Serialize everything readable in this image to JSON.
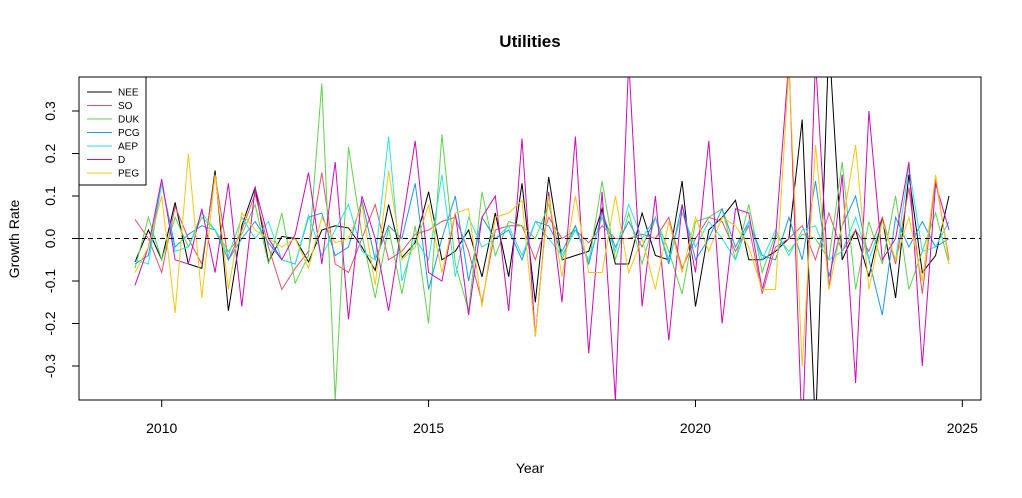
{
  "chart_data": {
    "type": "line",
    "title": "Utilities",
    "xlabel": "Year",
    "ylabel": "Growth Rate",
    "xlim": [
      2008.45,
      2025.35
    ],
    "ylim": [
      -0.38,
      0.38
    ],
    "xticks": [
      2010,
      2015,
      2020,
      2025
    ],
    "yticks": [
      -0.3,
      -0.2,
      -0.1,
      0.0,
      0.1,
      0.2,
      0.3
    ],
    "xtick_labels": [
      "2010",
      "2015",
      "2020",
      "2025"
    ],
    "ytick_labels": [
      "-0.3",
      "-0.2",
      "-0.1",
      "0.0",
      "0.1",
      "0.2",
      "0.3"
    ],
    "reference_line": {
      "y": 0,
      "style": "dashed"
    },
    "legend_position": "top-left",
    "x_start": 2009.5,
    "x_step": 0.25,
    "series": [
      {
        "name": "NEE",
        "color": "#000000",
        "values": [
          -0.055,
          0.02,
          -0.05,
          0.085,
          -0.06,
          -0.07,
          0.16,
          -0.17,
          0.03,
          0.12,
          -0.055,
          0.005,
          0.0,
          -0.055,
          0.02,
          0.03,
          0.025,
          -0.02,
          -0.075,
          0.08,
          -0.045,
          -0.01,
          0.11,
          -0.05,
          -0.03,
          0.02,
          -0.09,
          0.06,
          -0.09,
          0.13,
          -0.15,
          0.145,
          -0.05,
          -0.04,
          -0.03,
          0.07,
          -0.06,
          -0.06,
          0.06,
          -0.04,
          -0.05,
          0.135,
          -0.16,
          0.02,
          0.05,
          0.09,
          -0.05,
          -0.05,
          -0.03,
          0.0,
          0.28,
          -0.45,
          0.47,
          -0.05,
          0.02,
          -0.09,
          0.05,
          -0.14,
          0.15,
          -0.08,
          -0.04,
          0.1
        ]
      },
      {
        "name": "SO",
        "color": "#DF536B",
        "values": [
          0.045,
          0.0,
          -0.08,
          0.075,
          0.0,
          -0.06,
          0.15,
          -0.05,
          0.02,
          0.105,
          -0.02,
          -0.12,
          -0.07,
          -0.03,
          0.155,
          -0.06,
          -0.08,
          0.0,
          0.08,
          -0.05,
          -0.03,
          0.01,
          0.02,
          0.04,
          0.05,
          -0.03,
          -0.15,
          0.02,
          0.03,
          0.03,
          -0.05,
          0.05,
          0.0,
          0.02,
          -0.01,
          0.03,
          0.0,
          0.0,
          0.01,
          0.0,
          0.05,
          -0.07,
          0.0,
          0.05,
          0.04,
          -0.03,
          0.03,
          -0.13,
          -0.02,
          0.0,
          0.03,
          -0.05,
          0.06,
          -0.03,
          0.02,
          -0.03,
          0.05,
          -0.06,
          0.12,
          -0.13,
          0.14,
          -0.05
        ]
      },
      {
        "name": "DUK",
        "color": "#61D04F",
        "values": [
          -0.07,
          0.05,
          -0.05,
          0.05,
          -0.02,
          0.05,
          0.02,
          -0.03,
          0.01,
          0.08,
          -0.06,
          0.06,
          -0.105,
          -0.04,
          0.365,
          -0.38,
          0.215,
          0.01,
          -0.14,
          0.025,
          -0.13,
          0.03,
          -0.2,
          0.245,
          -0.06,
          -0.17,
          0.11,
          -0.04,
          0.04,
          0.03,
          0.0,
          0.08,
          -0.05,
          0.03,
          -0.06,
          0.135,
          -0.05,
          0.06,
          -0.06,
          0.05,
          -0.03,
          -0.13,
          0.04,
          0.05,
          0.07,
          -0.05,
          0.08,
          -0.08,
          0.01,
          -0.03,
          0.01,
          0.0,
          -0.05,
          0.18,
          -0.12,
          0.04,
          -0.06,
          0.1,
          -0.12,
          -0.03,
          0.06,
          -0.06
        ]
      },
      {
        "name": "PCG",
        "color": "#2297E6",
        "values": [
          -0.06,
          -0.04,
          0.13,
          -0.02,
          0.01,
          0.03,
          0.02,
          -0.05,
          0.0,
          0.04,
          -0.01,
          -0.05,
          -0.06,
          0.05,
          0.06,
          -0.04,
          -0.02,
          0.09,
          -0.05,
          0.03,
          0.0,
          0.13,
          -0.12,
          0.0,
          0.1,
          -0.1,
          0.05,
          0.0,
          0.02,
          -0.05,
          0.04,
          0.03,
          -0.03,
          0.03,
          -0.06,
          0.06,
          -0.02,
          0.04,
          -0.02,
          0.05,
          -0.06,
          0.08,
          -0.05,
          0.0,
          0.07,
          -0.02,
          0.04,
          -0.04,
          -0.05,
          0.05,
          -0.05,
          0.135,
          -0.09,
          0.03,
          0.1,
          -0.05,
          -0.18,
          0.05,
          -0.02,
          0.04,
          -0.02,
          0.0
        ]
      },
      {
        "name": "AEP",
        "color": "#28E2E5",
        "values": [
          -0.05,
          -0.06,
          0.13,
          -0.03,
          -0.02,
          0.06,
          0.02,
          -0.04,
          0.05,
          0.0,
          0.04,
          -0.05,
          -0.06,
          0.055,
          -0.04,
          0.02,
          0.08,
          -0.03,
          -0.05,
          0.24,
          -0.1,
          0.0,
          -0.05,
          0.15,
          -0.09,
          0.05,
          -0.02,
          0.0,
          0.03,
          -0.04,
          0.04,
          0.0,
          -0.04,
          0.02,
          -0.05,
          0.05,
          -0.03,
          0.08,
          0.0,
          0.05,
          -0.05,
          0.06,
          -0.02,
          0.04,
          0.0,
          -0.05,
          0.04,
          -0.05,
          0.02,
          -0.04,
          0.02,
          0.03,
          -0.05,
          -0.03,
          0.05,
          -0.05,
          0.04,
          -0.05,
          0.17,
          -0.03,
          -0.02,
          0.04
        ]
      },
      {
        "name": "D",
        "color": "#CD0BBC",
        "values": [
          -0.11,
          -0.02,
          0.14,
          -0.05,
          -0.06,
          0.07,
          -0.08,
          0.13,
          -0.16,
          0.12,
          0.0,
          -0.05,
          0.01,
          0.155,
          -0.06,
          0.18,
          -0.19,
          0.1,
          0.0,
          -0.17,
          0.03,
          0.23,
          -0.08,
          -0.1,
          0.06,
          -0.18,
          0.05,
          0.1,
          -0.17,
          0.235,
          -0.23,
          0.11,
          -0.15,
          0.24,
          -0.27,
          0.11,
          -0.38,
          0.42,
          -0.16,
          0.1,
          -0.24,
          0.08,
          -0.08,
          0.23,
          -0.2,
          0.07,
          0.06,
          -0.12,
          0.0,
          0.42,
          -0.47,
          0.42,
          -0.12,
          0.15,
          -0.34,
          0.3,
          -0.05,
          0.0,
          0.18,
          -0.3,
          0.13,
          0.02
        ]
      },
      {
        "name": "PEG",
        "color": "#F5C710",
        "values": [
          -0.08,
          -0.02,
          0.1,
          -0.175,
          0.2,
          -0.14,
          0.15,
          -0.12,
          0.06,
          0.02,
          0.0,
          -0.02,
          0.0,
          -0.07,
          0.05,
          -0.01,
          0.0,
          0.08,
          -0.11,
          0.16,
          -0.05,
          -0.02,
          0.08,
          -0.08,
          0.06,
          0.07,
          -0.16,
          0.05,
          0.06,
          0.09,
          -0.23,
          0.1,
          -0.09,
          0.1,
          -0.08,
          -0.08,
          0.1,
          -0.08,
          0.0,
          -0.12,
          0.04,
          -0.08,
          0.05,
          -0.03,
          0.05,
          0.03,
          -0.02,
          -0.12,
          -0.12,
          0.4,
          -0.3,
          0.22,
          -0.12,
          0.03,
          0.22,
          -0.12,
          0.04,
          -0.05,
          0.05,
          -0.1,
          0.15,
          -0.06
        ]
      }
    ]
  }
}
